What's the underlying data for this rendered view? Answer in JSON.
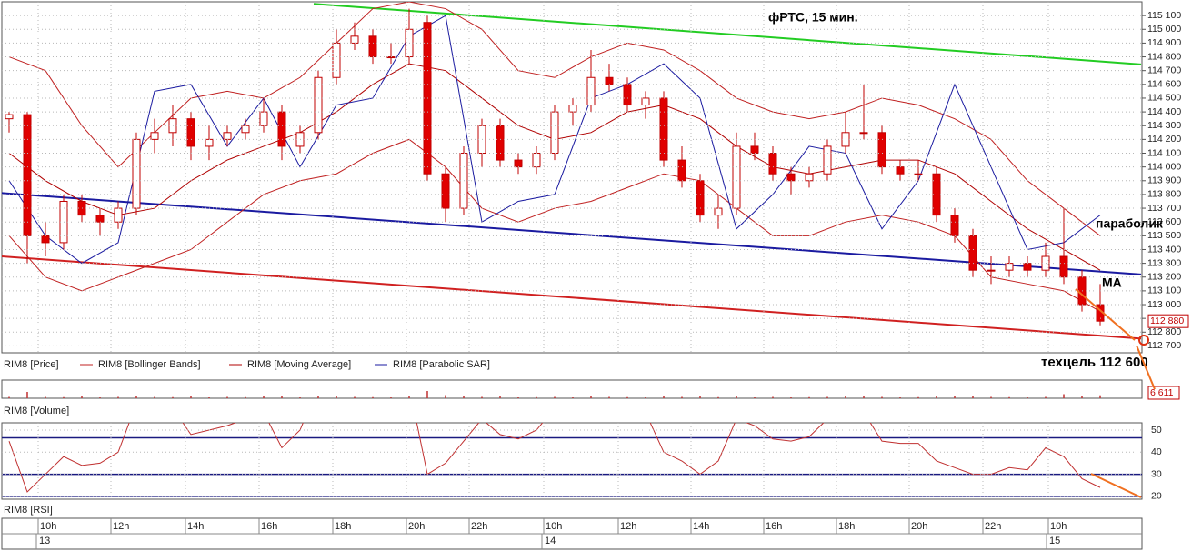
{
  "chart_data": {
    "type": "candlestick",
    "title": "фРТС, 15 мин.",
    "annotations": [
      "параболик",
      "MA",
      "техцель 112 600"
    ],
    "legend": [
      "RIM8 [Price]",
      "RIM8 [Bollinger Bands]",
      "RIM8 [Moving Average]",
      "RIM8 [Parabolic SAR]"
    ],
    "volume_title": "RIM8 [Volume]",
    "rsi_title": "RIM8 [RSI]",
    "up_color": "#ffffff",
    "down_color": "#e00000",
    "edge_color": "#c00000",
    "ylim": [
      112650,
      115200
    ],
    "yticks": [
      {
        "value": 112700,
        "label": "112 700"
      },
      {
        "value": 112800,
        "label": "112 800"
      },
      {
        "value": 112900,
        "label": "112 900"
      },
      {
        "value": 113000,
        "label": "113 000"
      },
      {
        "value": 113100,
        "label": "113 100"
      },
      {
        "value": 113200,
        "label": "113 200"
      },
      {
        "value": 113300,
        "label": "113 300"
      },
      {
        "value": 113400,
        "label": "113 400"
      },
      {
        "value": 113500,
        "label": "113 500"
      },
      {
        "value": 113600,
        "label": "113 600"
      },
      {
        "value": 113700,
        "label": "113 700"
      },
      {
        "value": 113800,
        "label": "113 800"
      },
      {
        "value": 113900,
        "label": "113 900"
      },
      {
        "value": 114000,
        "label": "114 000"
      },
      {
        "value": 114100,
        "label": "114 100"
      },
      {
        "value": 114200,
        "label": "114 200"
      },
      {
        "value": 114300,
        "label": "114 300"
      },
      {
        "value": 114400,
        "label": "114 400"
      },
      {
        "value": 114500,
        "label": "114 500"
      },
      {
        "value": 114600,
        "label": "114 600"
      },
      {
        "value": 114700,
        "label": "114 700"
      },
      {
        "value": 114800,
        "label": "114 800"
      },
      {
        "value": 114900,
        "label": "114 900"
      },
      {
        "value": 115000,
        "label": "115 000"
      },
      {
        "value": 115100,
        "label": "115 100"
      }
    ],
    "time_labels": [
      "10h",
      "12h",
      "14h",
      "16h",
      "18h",
      "20h",
      "22h",
      "10h",
      "12h",
      "14h",
      "16h",
      "18h",
      "20h",
      "22h",
      "10h"
    ],
    "date_labels": [
      "13",
      "14",
      "15"
    ],
    "candles": [
      [
        114350,
        114400,
        114250,
        114380
      ],
      [
        114380,
        114400,
        113300,
        113500
      ],
      [
        113500,
        113600,
        113350,
        113450
      ],
      [
        113450,
        113800,
        113400,
        113750
      ],
      [
        113750,
        113800,
        113600,
        113650
      ],
      [
        113650,
        113700,
        113500,
        113600
      ],
      [
        113600,
        113750,
        113550,
        113700
      ],
      [
        113700,
        114250,
        113650,
        114200
      ],
      [
        114200,
        114350,
        114100,
        114250
      ],
      [
        114250,
        114450,
        114150,
        114350
      ],
      [
        114350,
        114400,
        114050,
        114150
      ],
      [
        114150,
        114300,
        114050,
        114200
      ],
      [
        114200,
        114300,
        114150,
        114250
      ],
      [
        114250,
        114350,
        114200,
        114300
      ],
      [
        114300,
        114500,
        114250,
        114400
      ],
      [
        114400,
        114450,
        114050,
        114150
      ],
      [
        114150,
        114300,
        114100,
        114250
      ],
      [
        114250,
        114700,
        114200,
        114650
      ],
      [
        114650,
        115000,
        114600,
        114900
      ],
      [
        114900,
        115050,
        114850,
        114950
      ],
      [
        114950,
        115000,
        114750,
        114800
      ],
      [
        114800,
        114900,
        114750,
        114800
      ],
      [
        114800,
        115150,
        114750,
        115000
      ],
      [
        115050,
        115100,
        113900,
        113950
      ],
      [
        113950,
        114000,
        113600,
        113700
      ],
      [
        113700,
        114150,
        113650,
        114100
      ],
      [
        114100,
        114350,
        114000,
        114300
      ],
      [
        114300,
        114350,
        114000,
        114050
      ],
      [
        114050,
        114100,
        113950,
        114000
      ],
      [
        114000,
        114150,
        113950,
        114100
      ],
      [
        114100,
        114450,
        114050,
        114400
      ],
      [
        114400,
        114500,
        114300,
        114450
      ],
      [
        114450,
        114850,
        114400,
        114650
      ],
      [
        114650,
        114750,
        114550,
        114600
      ],
      [
        114600,
        114650,
        114400,
        114450
      ],
      [
        114450,
        114550,
        114350,
        114500
      ],
      [
        114500,
        114550,
        114000,
        114050
      ],
      [
        114050,
        114150,
        113850,
        113900
      ],
      [
        113900,
        113950,
        113600,
        113650
      ],
      [
        113650,
        113800,
        113550,
        113700
      ],
      [
        113700,
        114250,
        113650,
        114150
      ],
      [
        114150,
        114250,
        114050,
        114100
      ],
      [
        114100,
        114150,
        113900,
        113950
      ],
      [
        113950,
        114000,
        113800,
        113900
      ],
      [
        113900,
        114000,
        113850,
        113950
      ],
      [
        113950,
        114200,
        113900,
        114150
      ],
      [
        114150,
        114400,
        114100,
        114250
      ],
      [
        114250,
        114600,
        114200,
        114250
      ],
      [
        114250,
        114300,
        113950,
        114000
      ],
      [
        114000,
        114050,
        113900,
        113950
      ],
      [
        113950,
        114050,
        113900,
        113950
      ],
      [
        113950,
        114000,
        113600,
        113650
      ],
      [
        113650,
        113700,
        113450,
        113500
      ],
      [
        113500,
        113550,
        113200,
        113250
      ],
      [
        113250,
        113350,
        113150,
        113250
      ],
      [
        113250,
        113350,
        113200,
        113300
      ],
      [
        113300,
        113350,
        113200,
        113250
      ],
      [
        113250,
        113450,
        113200,
        113350
      ],
      [
        113350,
        113700,
        113150,
        113200
      ],
      [
        113200,
        113250,
        112950,
        113000
      ],
      [
        113000,
        113150,
        112850,
        112880
      ]
    ],
    "last_label": "112 880",
    "overlay_x": [
      0,
      2,
      4,
      6,
      8,
      10,
      12,
      14,
      16,
      18,
      20,
      22,
      24,
      26,
      28,
      30,
      32,
      34,
      36,
      38,
      40,
      42,
      44,
      46,
      48,
      50,
      52,
      54,
      56,
      58,
      60
    ],
    "overlays": [
      {
        "name": "RIM8 [Moving Average]",
        "color": "#b00000",
        "values": [
          114100,
          113900,
          113750,
          113650,
          113700,
          113900,
          114050,
          114150,
          114250,
          114400,
          114600,
          114750,
          114700,
          114500,
          114300,
          114200,
          114250,
          114400,
          114450,
          114350,
          114150,
          114000,
          113950,
          114000,
          114050,
          114050,
          113950,
          113750,
          113550,
          113400,
          113250
        ]
      },
      {
        "name": "upper",
        "color": "#c02020",
        "values": [
          114800,
          114700,
          114300,
          114000,
          114250,
          114500,
          114550,
          114500,
          114650,
          114900,
          115150,
          115200,
          115150,
          115000,
          114700,
          114650,
          114800,
          114900,
          114850,
          114700,
          114500,
          114400,
          114350,
          114400,
          114500,
          114450,
          114350,
          114200,
          113900,
          113700,
          113500
        ]
      },
      {
        "name": "lower",
        "color": "#c02020",
        "values": [
          113500,
          113200,
          113100,
          113200,
          113300,
          113400,
          113600,
          113800,
          113900,
          113950,
          114100,
          114200,
          114000,
          113700,
          113600,
          113700,
          113750,
          113850,
          113950,
          113900,
          113700,
          113500,
          113500,
          113600,
          113650,
          113600,
          113500,
          113200,
          113150,
          113100,
          112950
        ]
      },
      {
        "name": "RIM8 [Parabolic SAR]",
        "color": "#1a1aa0",
        "values": [
          113900,
          113500,
          113300,
          113450,
          114550,
          114600,
          114150,
          114500,
          114000,
          114450,
          114500,
          114950,
          115100,
          113600,
          113750,
          113800,
          114500,
          114600,
          114750,
          114500,
          113550,
          113800,
          114150,
          114100,
          113550,
          113900,
          114600,
          114000,
          113400,
          113450,
          113650
        ]
      }
    ],
    "trendlines": [
      {
        "color": "#22cc22",
        "x": [
          16.75,
          62.25
        ],
        "values": [
          115185,
          114745
        ]
      },
      {
        "color": "#1a1aa0",
        "x": [
          -0.5,
          62.25
        ],
        "values": [
          113811,
          113219
        ]
      },
      {
        "color": "#d02020",
        "x": [
          -0.5,
          62.25
        ],
        "values": [
          113351,
          112753
        ]
      }
    ],
    "volume": [
      3000,
      14000,
      3000,
      2500,
      4000,
      2000,
      3000,
      6000,
      3000,
      2500,
      4000,
      2000,
      3000,
      2500,
      5000,
      4000,
      2000,
      5000,
      6000,
      3000,
      2500,
      2000,
      5000,
      16000,
      7000,
      4000,
      3000,
      5000,
      2000,
      2500,
      3000,
      2000,
      6000,
      3000,
      2500,
      2000,
      6000,
      3000,
      4000,
      2500,
      5000,
      2000,
      3000,
      2000,
      2500,
      3000,
      4000,
      6000,
      3000,
      2000,
      2500,
      5000,
      4000,
      6000,
      3000,
      2500,
      2000,
      3000,
      9000,
      5000,
      6611
    ],
    "volume_label": "6 611",
    "volume_ylim": [
      0,
      40000
    ],
    "rsi": [
      45,
      22,
      30,
      38,
      34,
      35,
      40,
      62,
      62,
      60,
      48,
      50,
      52,
      55,
      58,
      42,
      50,
      70,
      75,
      72,
      60,
      60,
      70,
      30,
      35,
      45,
      55,
      48,
      46,
      50,
      60,
      62,
      68,
      62,
      55,
      58,
      40,
      36,
      30,
      36,
      55,
      52,
      46,
      45,
      47,
      55,
      58,
      58,
      45,
      44,
      44,
      36,
      33,
      30,
      30,
      33,
      32,
      42,
      38,
      28,
      24
    ],
    "rsi_ylim": [
      18.7,
      53.3
    ],
    "rsi_yticks": [
      20,
      30,
      40,
      50
    ],
    "rsi_levels": [
      46.5,
      30,
      20
    ],
    "rsi_color": "#c03030",
    "level_color": "#1a1a80"
  }
}
